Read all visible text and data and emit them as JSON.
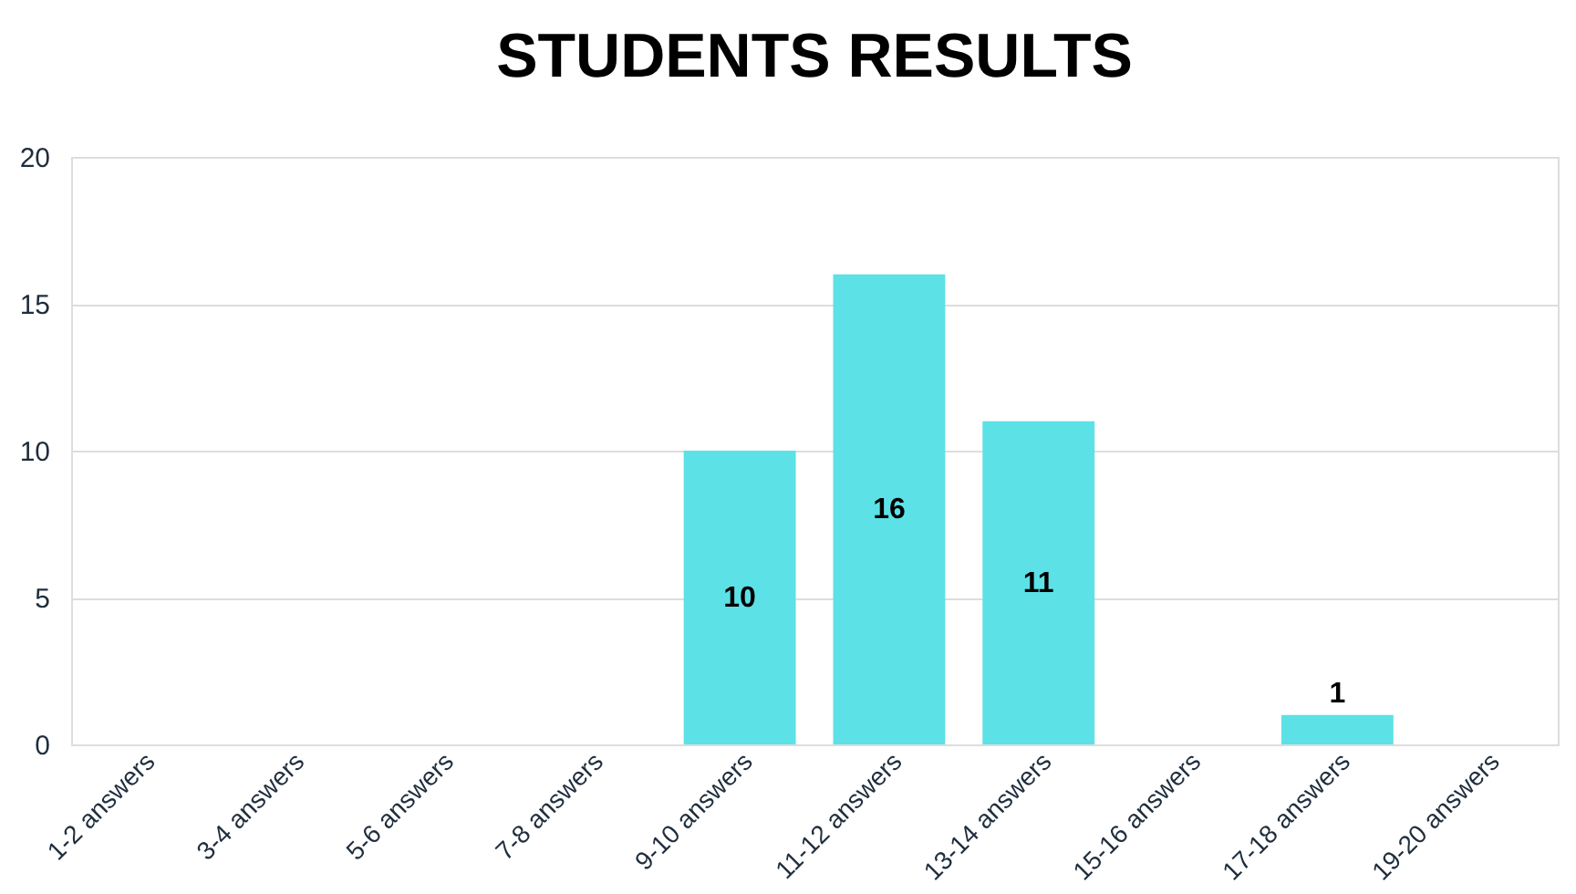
{
  "chart_data": {
    "type": "bar",
    "title": "STUDENTS RESULTS",
    "categories": [
      "1-2 answers",
      "3-4 answers",
      "5-6 answers",
      "7-8 answers",
      "9-10 answers",
      "11-12 answers",
      "13-14 answers",
      "15-16 answers",
      "17-18 answers",
      "19-20 answers"
    ],
    "values": [
      0,
      0,
      0,
      0,
      10,
      16,
      11,
      0,
      1,
      0
    ],
    "value_labels": [
      null,
      null,
      null,
      null,
      "10",
      "16",
      "11",
      null,
      "1",
      null
    ],
    "color": "#5ce1e6",
    "ylim": [
      0,
      20
    ],
    "yticks": [
      0,
      5,
      10,
      15,
      20
    ],
    "grid": "y"
  }
}
